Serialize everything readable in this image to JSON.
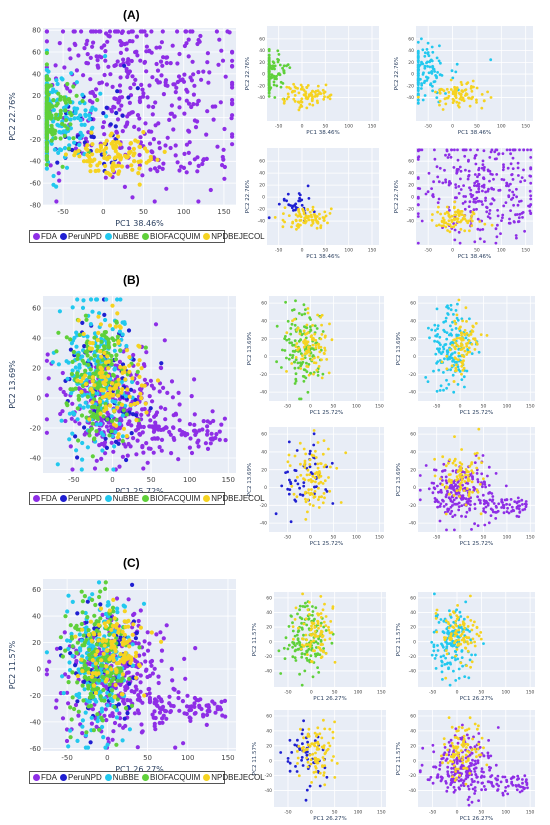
{
  "colors": {
    "FDA": "#8e2ee6",
    "PeruNPD": "#1f1fd1",
    "NuBBE": "#22c8ee",
    "BIOFACQUIM": "#5fd03a",
    "NPDBEJECOL": "#f5d321",
    "plot_bg": "#e8edf6",
    "grid": "#ffffff"
  },
  "legend": [
    "FDA",
    "PeruNPD",
    "NuBBE",
    "BIOFACQUIM",
    "NPDBEJECOL"
  ],
  "chart_data": [
    {
      "id": "A-main",
      "panel": "(A)",
      "type": "scatter",
      "xlabel": "PC1 38.46%",
      "ylabel": "PC2 22.76%",
      "xlim": [
        -75,
        165
      ],
      "ylim": [
        -80,
        82
      ],
      "xticks": [
        -50,
        0,
        50,
        100,
        150
      ],
      "yticks": [
        -80,
        -60,
        -40,
        -20,
        0,
        20,
        40,
        60,
        80
      ],
      "series_names": [
        "FDA",
        "PeruNPD",
        "NuBBE",
        "BIOFACQUIM",
        "NPDBEJECOL"
      ]
    },
    {
      "id": "A-biofacquim",
      "panel": "(A)",
      "type": "scatter",
      "xlabel": "PC1 38.46%",
      "ylabel": "PC2 22.76%",
      "xlim": [
        -75,
        165
      ],
      "ylim": [
        -80,
        82
      ],
      "xticks": [
        -50,
        0,
        50,
        100,
        150
      ],
      "yticks": [
        -40,
        -20,
        0,
        20,
        40,
        60
      ],
      "series_names": [
        "BIOFACQUIM",
        "NPDBEJECOL"
      ]
    },
    {
      "id": "A-nubbe",
      "panel": "(A)",
      "type": "scatter",
      "xlabel": "PC1 38.46%",
      "ylabel": "PC2 22.76%",
      "xlim": [
        -75,
        165
      ],
      "ylim": [
        -80,
        82
      ],
      "xticks": [
        -50,
        0,
        50,
        100,
        150
      ],
      "yticks": [
        -40,
        -20,
        0,
        20,
        40,
        60
      ],
      "series_names": [
        "NuBBE",
        "NPDBEJECOL"
      ]
    },
    {
      "id": "A-perunpd",
      "panel": "(A)",
      "type": "scatter",
      "xlabel": "PC1 38.46%",
      "ylabel": "PC2 22.76%",
      "xlim": [
        -75,
        165
      ],
      "ylim": [
        -80,
        82
      ],
      "xticks": [
        -50,
        0,
        50,
        100,
        150
      ],
      "yticks": [
        -40,
        -20,
        0,
        20,
        40,
        60
      ],
      "series_names": [
        "PeruNPD",
        "NPDBEJECOL"
      ]
    },
    {
      "id": "A-fda",
      "panel": "(A)",
      "type": "scatter",
      "xlabel": "PC1 38.46%",
      "ylabel": "PC2 22.76%",
      "xlim": [
        -75,
        165
      ],
      "ylim": [
        -80,
        82
      ],
      "xticks": [
        -50,
        0,
        50,
        100,
        150
      ],
      "yticks": [
        -40,
        -20,
        0,
        20,
        40,
        60
      ],
      "series_names": [
        "FDA",
        "NPDBEJECOL"
      ]
    },
    {
      "id": "B-main",
      "panel": "(B)",
      "type": "scatter",
      "xlabel": "PC1 25.72%",
      "ylabel": "PC2 13.69%",
      "xlim": [
        -90,
        160
      ],
      "ylim": [
        -50,
        68
      ],
      "xticks": [
        -50,
        0,
        50,
        100,
        150
      ],
      "yticks": [
        -40,
        -20,
        0,
        20,
        40,
        60
      ],
      "series_names": [
        "FDA",
        "PeruNPD",
        "NuBBE",
        "BIOFACQUIM",
        "NPDBEJECOL"
      ]
    },
    {
      "id": "B-biofacquim",
      "panel": "(B)",
      "type": "scatter",
      "xlabel": "PC1 25.72%",
      "ylabel": "PC2 13.69%",
      "xlim": [
        -90,
        160
      ],
      "ylim": [
        -50,
        68
      ],
      "xticks": [
        -50,
        0,
        50,
        100,
        150
      ],
      "yticks": [
        -40,
        -20,
        0,
        20,
        40,
        60
      ],
      "series_names": [
        "BIOFACQUIM",
        "NPDBEJECOL"
      ]
    },
    {
      "id": "B-nubbe",
      "panel": "(B)",
      "type": "scatter",
      "xlabel": "PC1 25.72%",
      "ylabel": "PC2 13.69%",
      "xlim": [
        -90,
        160
      ],
      "ylim": [
        -50,
        68
      ],
      "xticks": [
        -50,
        0,
        50,
        100,
        150
      ],
      "yticks": [
        -40,
        -20,
        0,
        20,
        40,
        60
      ],
      "series_names": [
        "NuBBE",
        "NPDBEJECOL"
      ]
    },
    {
      "id": "B-perunpd",
      "panel": "(B)",
      "type": "scatter",
      "xlabel": "PC1 25.72%",
      "ylabel": "PC2 13.69%",
      "xlim": [
        -90,
        160
      ],
      "ylim": [
        -50,
        68
      ],
      "xticks": [
        -50,
        0,
        50,
        100,
        150
      ],
      "yticks": [
        -40,
        -20,
        0,
        20,
        40,
        60
      ],
      "series_names": [
        "PeruNPD",
        "NPDBEJECOL"
      ]
    },
    {
      "id": "B-fda",
      "panel": "(B)",
      "type": "scatter",
      "xlabel": "PC1 25.72%",
      "ylabel": "PC2 13.69%",
      "xlim": [
        -90,
        160
      ],
      "ylim": [
        -50,
        68
      ],
      "xticks": [
        -50,
        0,
        50,
        100,
        150
      ],
      "yticks": [
        -40,
        -20,
        0,
        20,
        40,
        60
      ],
      "series_names": [
        "FDA",
        "NPDBEJECOL"
      ]
    },
    {
      "id": "C-main",
      "panel": "(C)",
      "type": "scatter",
      "xlabel": "PC1 26.27%",
      "ylabel": "PC2 11.57%",
      "xlim": [
        -80,
        160
      ],
      "ylim": [
        -62,
        68
      ],
      "xticks": [
        -50,
        0,
        50,
        100,
        150
      ],
      "yticks": [
        -60,
        -40,
        -20,
        0,
        20,
        40,
        60
      ],
      "series_names": [
        "FDA",
        "PeruNPD",
        "NuBBE",
        "BIOFACQUIM",
        "NPDBEJECOL"
      ]
    },
    {
      "id": "C-biofacquim",
      "panel": "(C)",
      "type": "scatter",
      "xlabel": "PC1 26.27%",
      "ylabel": "PC2 11.57%",
      "xlim": [
        -80,
        160
      ],
      "ylim": [
        -62,
        68
      ],
      "xticks": [
        -50,
        0,
        50,
        100,
        150
      ],
      "yticks": [
        -40,
        -20,
        0,
        20,
        40,
        60
      ],
      "series_names": [
        "BIOFACQUIM",
        "NPDBEJECOL"
      ]
    },
    {
      "id": "C-nubbe",
      "panel": "(C)",
      "type": "scatter",
      "xlabel": "PC1 26.27%",
      "ylabel": "PC2 11.57%",
      "xlim": [
        -80,
        160
      ],
      "ylim": [
        -62,
        68
      ],
      "xticks": [
        -50,
        0,
        50,
        100,
        150
      ],
      "yticks": [
        -40,
        -20,
        0,
        20,
        40,
        60
      ],
      "series_names": [
        "NuBBE",
        "NPDBEJECOL"
      ]
    },
    {
      "id": "C-perunpd",
      "panel": "(C)",
      "type": "scatter",
      "xlabel": "PC1 26.27%",
      "ylabel": "PC2 11.57%",
      "xlim": [
        -80,
        160
      ],
      "ylim": [
        -62,
        68
      ],
      "xticks": [
        -50,
        0,
        50,
        100,
        150
      ],
      "yticks": [
        -40,
        -20,
        0,
        20,
        40,
        60
      ],
      "series_names": [
        "PeruNPD",
        "NPDBEJECOL"
      ]
    },
    {
      "id": "C-fda",
      "panel": "(C)",
      "type": "scatter",
      "xlabel": "PC1 26.27%",
      "ylabel": "PC2 11.57%",
      "xlim": [
        -80,
        160
      ],
      "ylim": [
        -62,
        68
      ],
      "xticks": [
        -50,
        0,
        50,
        100,
        150
      ],
      "yticks": [
        -40,
        -20,
        0,
        20,
        40,
        60
      ],
      "series_names": [
        "FDA",
        "NPDBEJECOL"
      ]
    }
  ]
}
